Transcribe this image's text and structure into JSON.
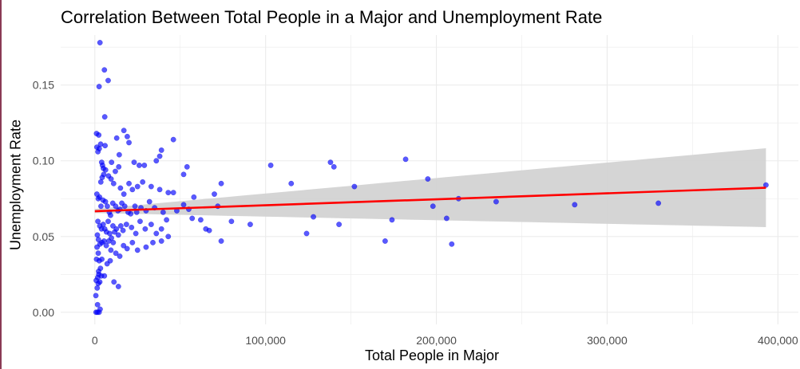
{
  "chart_data": {
    "type": "scatter",
    "title": "Correlation Between Total People in a Major and Unemployment Rate",
    "xlabel": "Total People in Major",
    "ylabel": "Unemployment Rate",
    "xlim": [
      -20000,
      412000
    ],
    "ylim": [
      -0.008,
      0.183
    ],
    "x_ticks": [
      0,
      100000,
      200000,
      300000,
      400000
    ],
    "x_tick_labels": [
      "0",
      "100,000",
      "200,000",
      "300,000",
      "400,000"
    ],
    "y_ticks": [
      0.0,
      0.05,
      0.1,
      0.15
    ],
    "y_tick_labels": [
      "0.00",
      "0.05",
      "0.10",
      "0.15"
    ],
    "grid": true,
    "colors": {
      "points": "#0000ff",
      "trend": "#ff0000",
      "band": "#d3d3d3",
      "grid": "#ebebeb",
      "text": "#4d4d4d"
    },
    "trend": {
      "x": [
        0,
        393000
      ],
      "y": [
        0.0667,
        0.0822
      ]
    },
    "confidence_band": {
      "x": [
        0,
        393000
      ],
      "upper": [
        0.0682,
        0.1083
      ],
      "lower": [
        0.0655,
        0.0562
      ]
    },
    "points": [
      [
        3000,
        0.178
      ],
      [
        5600,
        0.16
      ],
      [
        7800,
        0.153
      ],
      [
        2500,
        0.149
      ],
      [
        5800,
        0.129
      ],
      [
        1000,
        0.118
      ],
      [
        2300,
        0.117
      ],
      [
        1200,
        0.109
      ],
      [
        3400,
        0.111
      ],
      [
        1800,
        0.106
      ],
      [
        2600,
        0.108
      ],
      [
        6000,
        0.11
      ],
      [
        9800,
        0.099
      ],
      [
        12800,
        0.115
      ],
      [
        14300,
        0.104
      ],
      [
        17000,
        0.12
      ],
      [
        19000,
        0.116
      ],
      [
        20000,
        0.112
      ],
      [
        23000,
        0.099
      ],
      [
        26000,
        0.097
      ],
      [
        29000,
        0.097
      ],
      [
        36000,
        0.1
      ],
      [
        46000,
        0.114
      ],
      [
        39000,
        0.107
      ],
      [
        38000,
        0.103
      ],
      [
        4000,
        0.099
      ],
      [
        4500,
        0.097
      ],
      [
        5000,
        0.095
      ],
      [
        5200,
        0.091
      ],
      [
        3500,
        0.086
      ],
      [
        4300,
        0.089
      ],
      [
        6300,
        0.094
      ],
      [
        8000,
        0.09
      ],
      [
        9500,
        0.088
      ],
      [
        11000,
        0.085
      ],
      [
        12000,
        0.093
      ],
      [
        14000,
        0.096
      ],
      [
        15000,
        0.082
      ],
      [
        17000,
        0.078
      ],
      [
        20000,
        0.085
      ],
      [
        22000,
        0.081
      ],
      [
        25000,
        0.083
      ],
      [
        28000,
        0.086
      ],
      [
        33000,
        0.083
      ],
      [
        38000,
        0.081
      ],
      [
        43000,
        0.079
      ],
      [
        46000,
        0.079
      ],
      [
        54000,
        0.096
      ],
      [
        52000,
        0.091
      ],
      [
        58000,
        0.076
      ],
      [
        70000,
        0.078
      ],
      [
        72000,
        0.07
      ],
      [
        74000,
        0.085
      ],
      [
        103000,
        0.097
      ],
      [
        115000,
        0.085
      ],
      [
        138000,
        0.099
      ],
      [
        140000,
        0.096
      ],
      [
        152000,
        0.083
      ],
      [
        182000,
        0.101
      ],
      [
        195000,
        0.088
      ],
      [
        1200,
        0.078
      ],
      [
        2000,
        0.075
      ],
      [
        2800,
        0.076
      ],
      [
        3600,
        0.07
      ],
      [
        4800,
        0.074
      ],
      [
        6200,
        0.073
      ],
      [
        7300,
        0.07
      ],
      [
        8500,
        0.066
      ],
      [
        9200,
        0.064
      ],
      [
        10500,
        0.072
      ],
      [
        12200,
        0.07
      ],
      [
        13500,
        0.067
      ],
      [
        14700,
        0.068
      ],
      [
        15800,
        0.072
      ],
      [
        17500,
        0.07
      ],
      [
        19500,
        0.066
      ],
      [
        21000,
        0.065
      ],
      [
        23500,
        0.07
      ],
      [
        24500,
        0.066
      ],
      [
        27000,
        0.069
      ],
      [
        30000,
        0.067
      ],
      [
        32000,
        0.073
      ],
      [
        35000,
        0.069
      ],
      [
        40000,
        0.066
      ],
      [
        42000,
        0.061
      ],
      [
        48000,
        0.067
      ],
      [
        52000,
        0.071
      ],
      [
        55000,
        0.068
      ],
      [
        57000,
        0.062
      ],
      [
        62000,
        0.061
      ],
      [
        65000,
        0.055
      ],
      [
        67000,
        0.054
      ],
      [
        80000,
        0.06
      ],
      [
        91000,
        0.058
      ],
      [
        124000,
        0.052
      ],
      [
        128000,
        0.063
      ],
      [
        143000,
        0.058
      ],
      [
        170000,
        0.047
      ],
      [
        174000,
        0.061
      ],
      [
        198000,
        0.07
      ],
      [
        206000,
        0.062
      ],
      [
        209000,
        0.045
      ],
      [
        213000,
        0.075
      ],
      [
        235000,
        0.073
      ],
      [
        281000,
        0.071
      ],
      [
        330000,
        0.072
      ],
      [
        393000,
        0.084
      ],
      [
        1800,
        0.06
      ],
      [
        2900,
        0.057
      ],
      [
        3900,
        0.055
      ],
      [
        4900,
        0.058
      ],
      [
        5800,
        0.055
      ],
      [
        6800,
        0.053
      ],
      [
        7800,
        0.06
      ],
      [
        8700,
        0.052
      ],
      [
        9700,
        0.049
      ],
      [
        10600,
        0.057
      ],
      [
        11600,
        0.053
      ],
      [
        12600,
        0.055
      ],
      [
        13800,
        0.051
      ],
      [
        15200,
        0.057
      ],
      [
        16500,
        0.054
      ],
      [
        18500,
        0.058
      ],
      [
        21500,
        0.056
      ],
      [
        24000,
        0.052
      ],
      [
        26500,
        0.06
      ],
      [
        29500,
        0.055
      ],
      [
        33000,
        0.058
      ],
      [
        36000,
        0.052
      ],
      [
        39000,
        0.055
      ],
      [
        43000,
        0.05
      ],
      [
        30000,
        0.043
      ],
      [
        34000,
        0.046
      ],
      [
        39000,
        0.047
      ],
      [
        74000,
        0.047
      ],
      [
        1500,
        0.051
      ],
      [
        2100,
        0.048
      ],
      [
        3000,
        0.045
      ],
      [
        4200,
        0.046
      ],
      [
        5400,
        0.047
      ],
      [
        6700,
        0.044
      ],
      [
        8100,
        0.047
      ],
      [
        9400,
        0.041
      ],
      [
        10800,
        0.046
      ],
      [
        12300,
        0.039
      ],
      [
        14600,
        0.037
      ],
      [
        16800,
        0.044
      ],
      [
        18900,
        0.042
      ],
      [
        22000,
        0.046
      ],
      [
        25000,
        0.041
      ],
      [
        1300,
        0.043
      ],
      [
        2000,
        0.039
      ],
      [
        1000,
        0.035
      ],
      [
        2600,
        0.034
      ],
      [
        3300,
        0.029
      ],
      [
        2200,
        0.027
      ],
      [
        1700,
        0.023
      ],
      [
        3800,
        0.024
      ],
      [
        2900,
        0.02
      ],
      [
        2000,
        0.019
      ],
      [
        1400,
        0.016
      ],
      [
        4100,
        0.035
      ],
      [
        5600,
        0.024
      ],
      [
        7200,
        0.032
      ],
      [
        9000,
        0.034
      ],
      [
        11200,
        0.02
      ],
      [
        13800,
        0.017
      ],
      [
        600,
        0.011
      ],
      [
        1600,
        0.005
      ],
      [
        3100,
        0.002
      ],
      [
        700,
        0.0
      ],
      [
        1500,
        0.0
      ],
      [
        2500,
        0.0
      ],
      [
        800,
        0.021
      ],
      [
        2300,
        0.025
      ]
    ]
  }
}
